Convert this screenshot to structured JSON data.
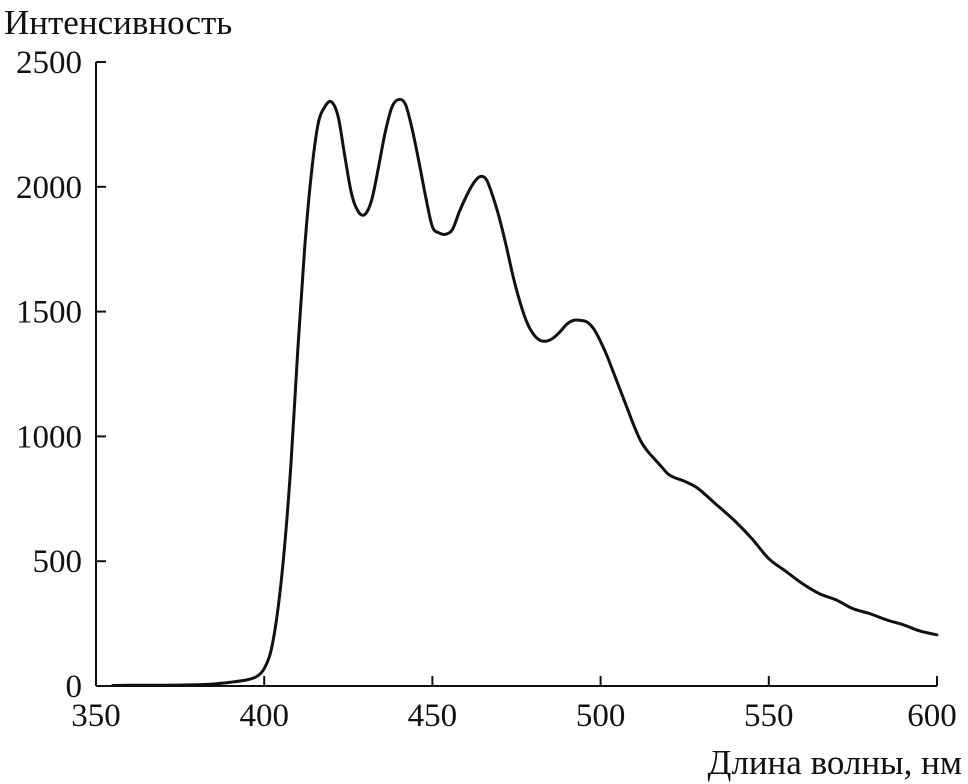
{
  "chart_data": {
    "type": "line",
    "title": "",
    "xlabel": "Длина волны, нм",
    "ylabel": "Интенсивность",
    "xlim": [
      350,
      600
    ],
    "ylim": [
      0,
      2500
    ],
    "xticks": [
      "350",
      "400",
      "450",
      "500",
      "550",
      "600"
    ],
    "yticks": [
      "0",
      "500",
      "1000",
      "1500",
      "2000",
      "2500"
    ],
    "grid": false,
    "series": [
      {
        "color": "#111111",
        "x": [
          355,
          360,
          370,
          380,
          385,
          390,
          395,
          398,
          400,
          402,
          404,
          406,
          408,
          410,
          412,
          414,
          416,
          418,
          420,
          422,
          424,
          426,
          428,
          430,
          432,
          434,
          436,
          438,
          440,
          442,
          444,
          446,
          448,
          450,
          452,
          454,
          456,
          458,
          460,
          462,
          464,
          466,
          468,
          470,
          472,
          474,
          476,
          478,
          480,
          482,
          484,
          486,
          488,
          490,
          492,
          494,
          496,
          498,
          500,
          502,
          504,
          506,
          508,
          510,
          512,
          514,
          516,
          518,
          520,
          522,
          525,
          528,
          530,
          535,
          540,
          545,
          550,
          555,
          560,
          565,
          570,
          575,
          580,
          585,
          590,
          595,
          600
        ],
        "y": [
          2,
          3,
          3,
          5,
          8,
          15,
          25,
          40,
          70,
          140,
          300,
          550,
          900,
          1350,
          1750,
          2050,
          2250,
          2320,
          2340,
          2280,
          2120,
          1970,
          1900,
          1890,
          1950,
          2080,
          2220,
          2320,
          2350,
          2330,
          2230,
          2100,
          1960,
          1840,
          1815,
          1810,
          1830,
          1900,
          1960,
          2010,
          2040,
          2030,
          1960,
          1870,
          1760,
          1640,
          1540,
          1460,
          1410,
          1385,
          1382,
          1395,
          1420,
          1450,
          1465,
          1465,
          1458,
          1430,
          1380,
          1320,
          1250,
          1180,
          1110,
          1040,
          980,
          940,
          910,
          880,
          850,
          835,
          820,
          800,
          780,
          720,
          660,
          590,
          510,
          460,
          410,
          370,
          345,
          310,
          290,
          265,
          245,
          220,
          205
        ]
      }
    ]
  }
}
